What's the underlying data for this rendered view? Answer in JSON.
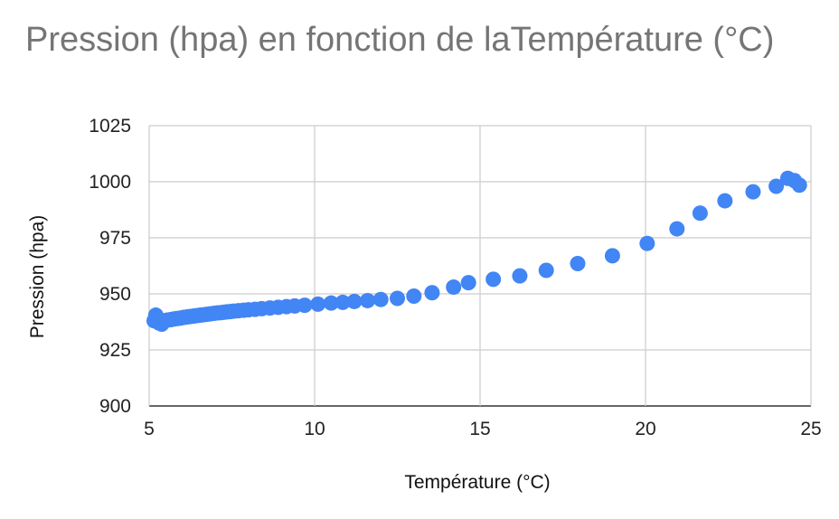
{
  "chart_data": {
    "type": "scatter",
    "title": "Pression (hpa) en fonction de laTempérature (°C)",
    "xlabel": "Température (°C)",
    "ylabel": "Pression (hpa)",
    "xlim": [
      5,
      25
    ],
    "ylim": [
      900,
      1025
    ],
    "xticks": [
      5,
      10,
      15,
      20,
      25
    ],
    "yticks": [
      900,
      925,
      950,
      975,
      1000,
      1025
    ],
    "grid": true,
    "legend": "none",
    "color": "#4285f4",
    "x": [
      5.15,
      5.2,
      5.3,
      5.38,
      5.45,
      5.55,
      5.65,
      5.75,
      5.85,
      5.95,
      6.05,
      6.15,
      6.25,
      6.35,
      6.45,
      6.55,
      6.65,
      6.75,
      6.85,
      6.95,
      7.05,
      7.15,
      7.25,
      7.35,
      7.45,
      7.55,
      7.7,
      7.85,
      8.0,
      8.2,
      8.4,
      8.65,
      8.9,
      9.15,
      9.4,
      9.7,
      10.1,
      10.5,
      10.85,
      11.2,
      11.6,
      12.0,
      12.5,
      13.0,
      13.55,
      14.2,
      14.65,
      15.4,
      16.2,
      17.0,
      17.95,
      19.0,
      20.05,
      20.95,
      21.65,
      22.4,
      23.25,
      23.95,
      24.3,
      24.5,
      24.65
    ],
    "y": [
      938,
      940.5,
      937,
      936.5,
      938,
      938.3,
      938.5,
      938.8,
      939,
      939.2,
      939.5,
      939.7,
      939.9,
      940.1,
      940.3,
      940.5,
      940.7,
      940.9,
      941.1,
      941.3,
      941.5,
      941.6,
      941.8,
      942,
      942.1,
      942.3,
      942.5,
      942.7,
      942.9,
      943.1,
      943.4,
      943.7,
      944,
      944.3,
      944.6,
      944.9,
      945.4,
      945.9,
      946.2,
      946.6,
      947,
      947.5,
      948,
      949,
      950.5,
      953,
      955,
      956.5,
      958,
      960.5,
      963.5,
      967,
      972.5,
      979,
      986,
      991.5,
      995.5,
      998,
      1001.5,
      1000.5,
      998.5
    ]
  }
}
